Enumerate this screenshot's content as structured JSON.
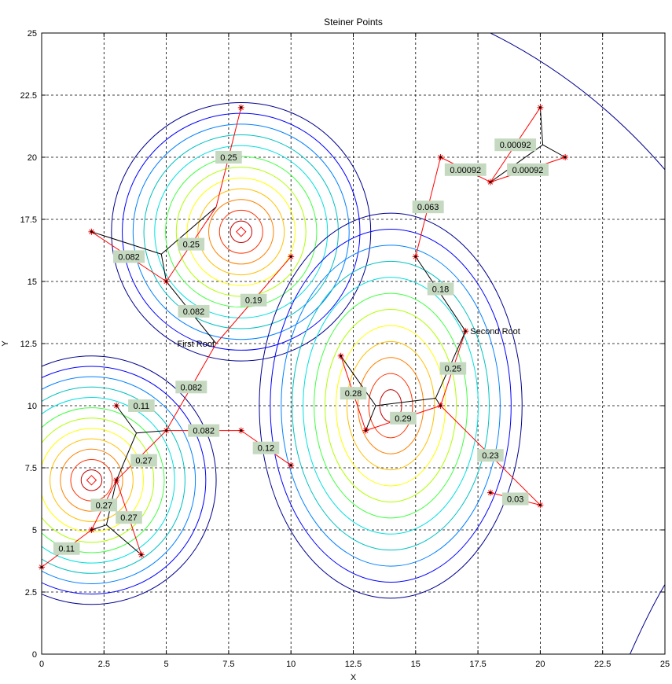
{
  "chart_data": {
    "type": "line",
    "title": "Steiner Points",
    "xlabel": "X",
    "ylabel": "Y",
    "xlim": [
      0,
      25
    ],
    "ylim": [
      0,
      25
    ],
    "grid": true,
    "x_ticks": [
      "0",
      "2.5",
      "5",
      "7.5",
      "10",
      "12.5",
      "15",
      "17.5",
      "20",
      "22.5",
      "25"
    ],
    "y_ticks": [
      "0",
      "2.5",
      "5",
      "7.5",
      "10",
      "12.5",
      "15",
      "17.5",
      "20",
      "22.5",
      "25"
    ],
    "density_centers": [
      {
        "x": 2,
        "y": 7
      },
      {
        "x": 8,
        "y": 17
      }
    ],
    "terminals": [
      {
        "x": 2,
        "y": 17
      },
      {
        "x": 5,
        "y": 15
      },
      {
        "x": 8,
        "y": 22
      },
      {
        "x": 10,
        "y": 16
      },
      {
        "x": 5,
        "y": 9
      },
      {
        "x": 8,
        "y": 9
      },
      {
        "x": 10,
        "y": 7.6
      },
      {
        "x": 3,
        "y": 10
      },
      {
        "x": 3,
        "y": 7
      },
      {
        "x": 2,
        "y": 5
      },
      {
        "x": 4,
        "y": 4
      },
      {
        "x": 0,
        "y": 3.5
      },
      {
        "x": 15,
        "y": 16
      },
      {
        "x": 16,
        "y": 20
      },
      {
        "x": 18,
        "y": 19
      },
      {
        "x": 20,
        "y": 22
      },
      {
        "x": 21,
        "y": 20
      },
      {
        "x": 17,
        "y": 13
      },
      {
        "x": 16,
        "y": 10
      },
      {
        "x": 13,
        "y": 9
      },
      {
        "x": 12,
        "y": 12
      },
      {
        "x": 18,
        "y": 6.5
      },
      {
        "x": 20,
        "y": 6
      }
    ],
    "roots": [
      {
        "name": "First Root",
        "x": 7,
        "y": 12.5
      },
      {
        "name": "Second Root",
        "x": 17,
        "y": 13
      }
    ],
    "red_edges": [
      {
        "from": [
          7,
          12.5
        ],
        "to": [
          10,
          16
        ],
        "label": "0.19"
      },
      {
        "from": [
          7,
          12.5
        ],
        "to": [
          5,
          9
        ],
        "label": "0.082"
      },
      {
        "from": [
          5,
          9
        ],
        "to": [
          8,
          9
        ],
        "label": "0.082"
      },
      {
        "from": [
          8,
          9
        ],
        "to": [
          10,
          7.6
        ],
        "label": "0.12"
      },
      {
        "from": [
          5,
          9
        ],
        "to": [
          3,
          7
        ],
        "label": ""
      },
      {
        "from": [
          7,
          18
        ],
        "to": [
          8,
          22
        ],
        "label": "0.25"
      },
      {
        "from": [
          5,
          15
        ],
        "to": [
          7,
          18
        ],
        "label": "0.25"
      },
      {
        "from": [
          2,
          17
        ],
        "to": [
          5,
          15
        ],
        "label": "0.082"
      },
      {
        "from": [
          3,
          7
        ],
        "to": [
          2,
          5
        ],
        "label": "0.27"
      },
      {
        "from": [
          3,
          7
        ],
        "to": [
          4,
          4
        ],
        "label": "0.27"
      },
      {
        "from": [
          0,
          3.5
        ],
        "to": [
          2,
          5
        ],
        "label": "0.11"
      },
      {
        "from": [
          15,
          16
        ],
        "to": [
          16,
          20
        ],
        "label": "0.063"
      },
      {
        "from": [
          16,
          20
        ],
        "to": [
          18,
          19
        ],
        "label": "0.00092"
      },
      {
        "from": [
          18,
          19
        ],
        "to": [
          20,
          22
        ],
        "label": "0.00092"
      },
      {
        "from": [
          18,
          19
        ],
        "to": [
          21,
          20
        ],
        "label": "0.00092"
      },
      {
        "from": [
          16,
          10
        ],
        "to": [
          17,
          13
        ],
        "label": "0.25"
      },
      {
        "from": [
          13,
          9
        ],
        "to": [
          16,
          10
        ],
        "label": "0.29"
      },
      {
        "from": [
          12,
          12
        ],
        "to": [
          13,
          9
        ],
        "label": "0.28"
      },
      {
        "from": [
          16,
          10
        ],
        "to": [
          20,
          6
        ],
        "label": "0.23"
      },
      {
        "from": [
          18,
          6.5
        ],
        "to": [
          20,
          6
        ],
        "label": "0.03"
      }
    ],
    "black_edges": [
      [
        [
          2,
          17
        ],
        [
          4.8,
          16.1
        ]
      ],
      [
        [
          4.8,
          16.1
        ],
        [
          5,
          15
        ]
      ],
      [
        [
          4.8,
          16.1
        ],
        [
          7,
          18
        ]
      ],
      [
        [
          5,
          15
        ],
        [
          7,
          12.5
        ]
      ],
      [
        [
          3,
          10
        ],
        [
          3.8,
          8.9
        ]
      ],
      [
        [
          3.8,
          8.9
        ],
        [
          5,
          9
        ]
      ],
      [
        [
          3.8,
          8.9
        ],
        [
          3,
          7
        ]
      ],
      [
        [
          2,
          5
        ],
        [
          2.6,
          5.2
        ]
      ],
      [
        [
          2.6,
          5.2
        ],
        [
          3,
          7
        ]
      ],
      [
        [
          2.6,
          5.2
        ],
        [
          4,
          4
        ]
      ],
      [
        [
          15,
          16
        ],
        [
          17,
          13
        ]
      ],
      [
        [
          17,
          13
        ],
        [
          15.8,
          10.3
        ]
      ],
      [
        [
          15.8,
          10.3
        ],
        [
          16,
          10
        ]
      ],
      [
        [
          15.8,
          10.3
        ],
        [
          13.4,
          10
        ]
      ],
      [
        [
          13.4,
          10
        ],
        [
          13,
          9
        ]
      ],
      [
        [
          13.4,
          10
        ],
        [
          12,
          12
        ]
      ],
      [
        [
          20,
          22
        ],
        [
          20.1,
          20.5
        ]
      ],
      [
        [
          20.1,
          20.5
        ],
        [
          21,
          20
        ]
      ],
      [
        [
          20.1,
          20.5
        ],
        [
          18,
          19
        ]
      ]
    ],
    "black_labels": [
      {
        "text": "0.11",
        "at": [
          4,
          10
        ]
      },
      {
        "text": "0.27",
        "at": [
          4.1,
          7.8
        ]
      },
      {
        "text": "0.082",
        "at": [
          6.1,
          13.8
        ]
      },
      {
        "text": "0.18",
        "at": [
          16.0,
          14.7
        ]
      }
    ],
    "contour_colors": [
      "#00008f",
      "#0000ff",
      "#0080ff",
      "#00c0c0",
      "#00e0e0",
      "#40ff40",
      "#b0ff00",
      "#ffff00",
      "#ffc000",
      "#ff8000",
      "#ff3000",
      "#c00000"
    ]
  }
}
